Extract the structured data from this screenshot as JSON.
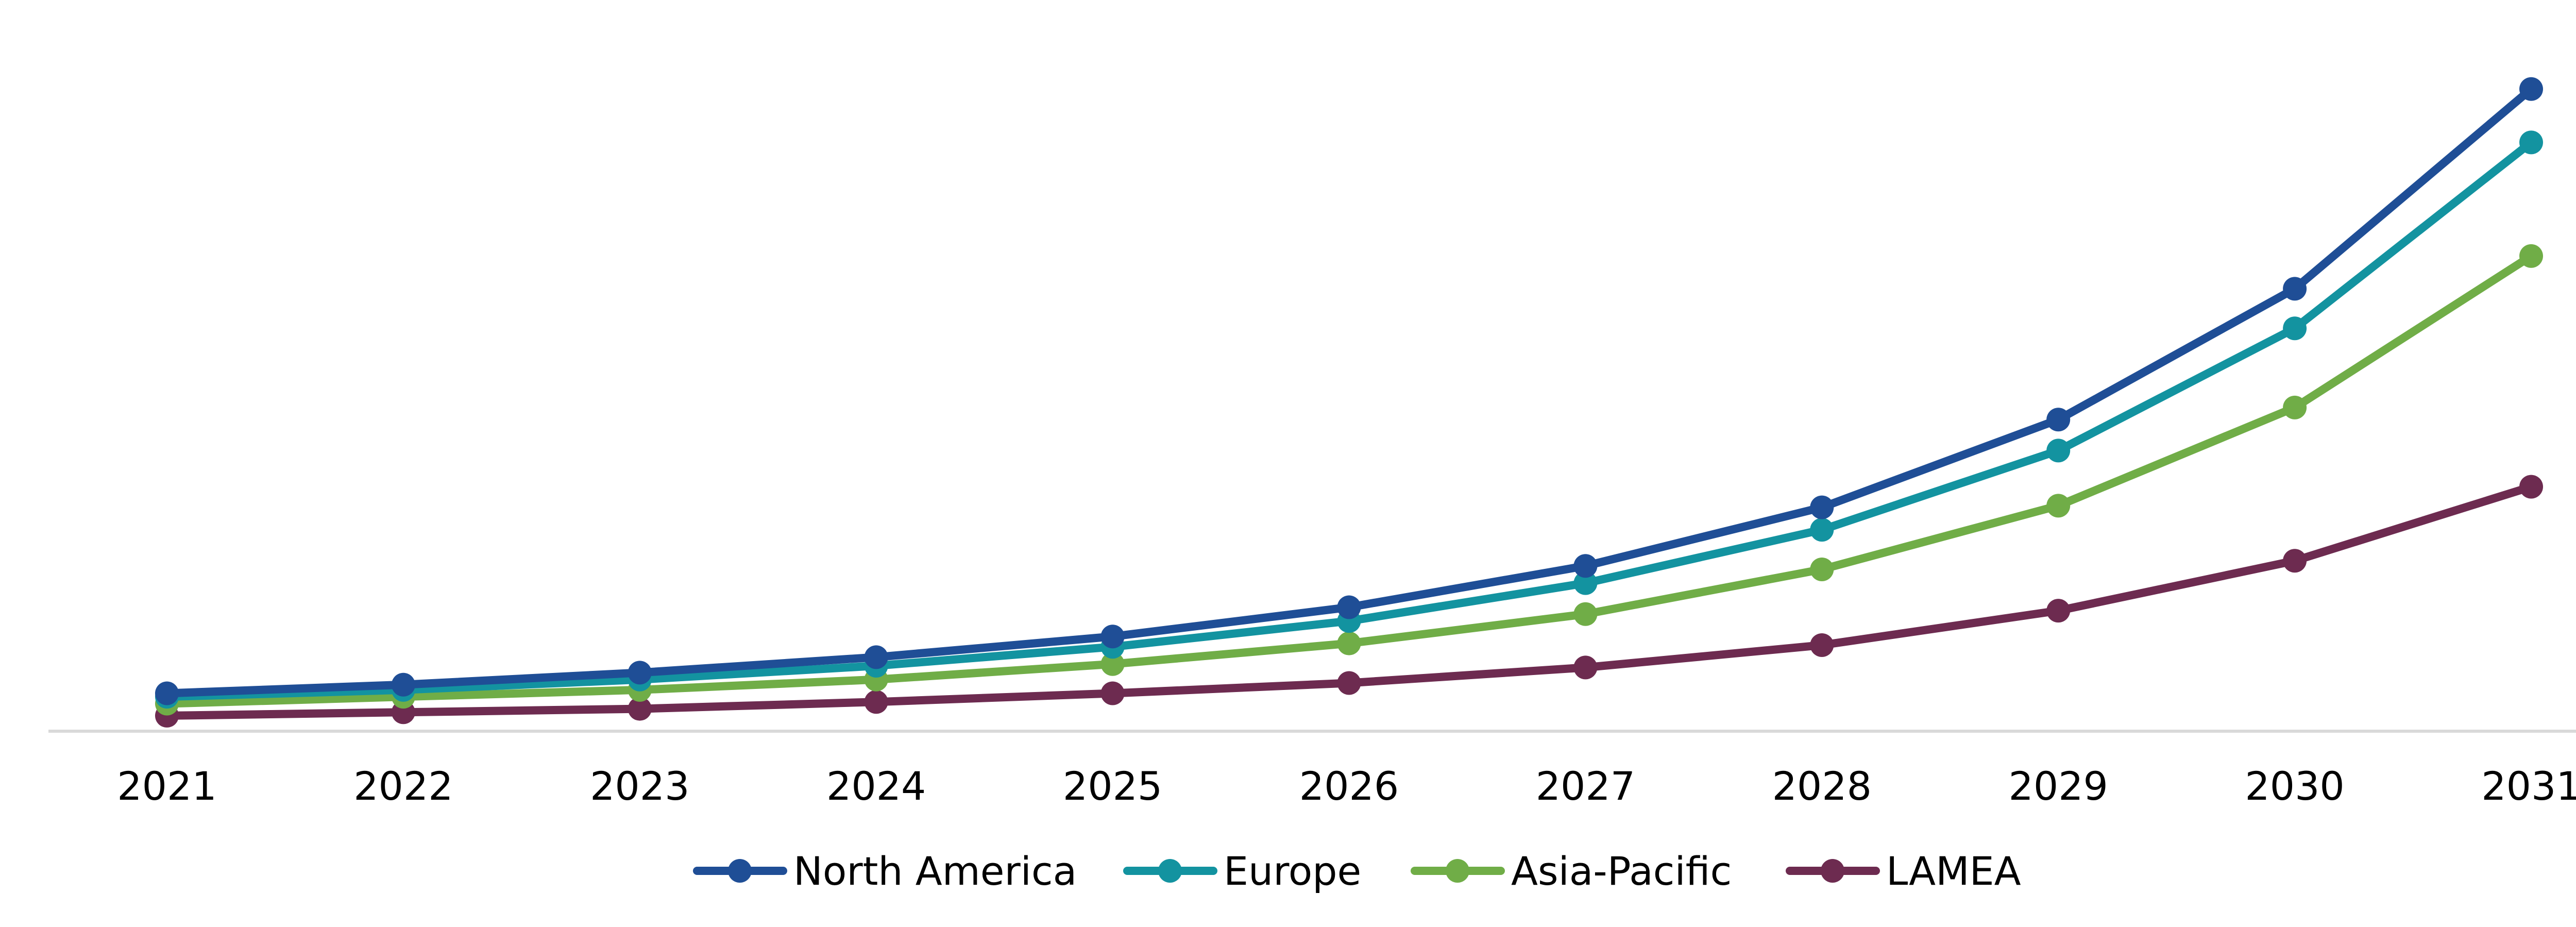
{
  "chart_data": {
    "type": "line",
    "title": "",
    "xlabel": "",
    "ylabel": "",
    "x": [
      "2021",
      "2022",
      "2023",
      "2024",
      "2025",
      "2026",
      "2027",
      "2028",
      "2029",
      "2030",
      "2031"
    ],
    "ylim": [
      0,
      390
    ],
    "y_axis_labels_shown": false,
    "grid": false,
    "legend_position": "bottom",
    "series": [
      {
        "name": "North America",
        "color": "#1f4e96",
        "values": [
          22,
          27,
          34,
          43,
          55,
          72,
          96,
          130,
          181,
          257,
          373
        ]
      },
      {
        "name": "Europe",
        "color": "#1393a0",
        "values": [
          20,
          24,
          30,
          38,
          49,
          64,
          86,
          117,
          163,
          234,
          342
        ]
      },
      {
        "name": "Asia-Pacific",
        "color": "#70ad47",
        "values": [
          16,
          20,
          24,
          30,
          39,
          51,
          68,
          94,
          131,
          188,
          276
        ]
      },
      {
        "name": "LAMEA",
        "color": "#6d2b50",
        "values": [
          9,
          11,
          13,
          17,
          22,
          28,
          37,
          50,
          70,
          99,
          142
        ]
      }
    ],
    "axis_color": "#d9d9d9"
  }
}
